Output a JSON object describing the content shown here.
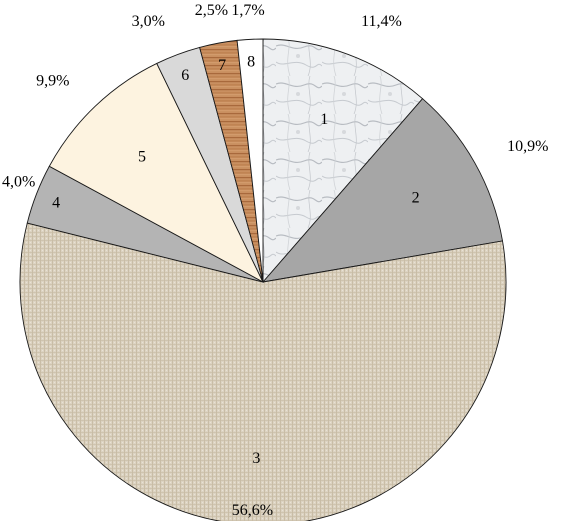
{
  "chart_data": {
    "type": "pie",
    "slices": [
      {
        "label": "1",
        "value": 11.4,
        "value_label": "11,4%",
        "fill": "marble"
      },
      {
        "label": "2",
        "value": 10.9,
        "value_label": "10,9%",
        "fill": "#a6a6a6"
      },
      {
        "label": "3",
        "value": 56.6,
        "value_label": "56,6%",
        "fill": "canvas"
      },
      {
        "label": "4",
        "value": 4.0,
        "value_label": "4,0%",
        "fill": "#b4b4b4"
      },
      {
        "label": "5",
        "value": 9.9,
        "value_label": "9,9%",
        "fill": "#fdf3e0"
      },
      {
        "label": "6",
        "value": 3.0,
        "value_label": "3,0%",
        "fill": "#d9d9d9"
      },
      {
        "label": "7",
        "value": 2.5,
        "value_label": "2,5%",
        "fill": "wood"
      },
      {
        "label": "8",
        "value": 1.7,
        "value_label": "1,7%",
        "fill": "#ffffff"
      }
    ],
    "start_angle_deg": 0,
    "direction": "clockwise",
    "legend": "none"
  }
}
